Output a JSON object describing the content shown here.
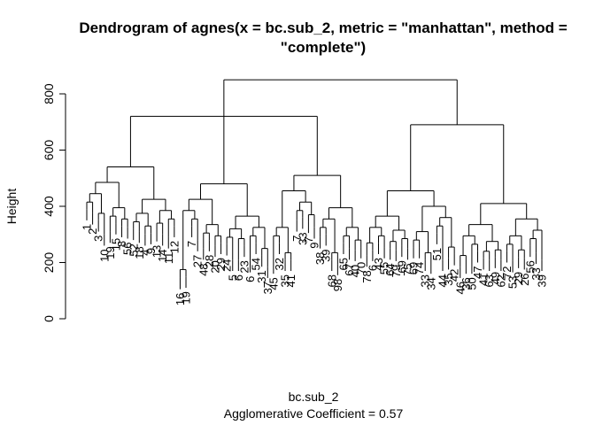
{
  "chart_data": {
    "type": "dendrogram",
    "title_line1": "Dendrogram of  agnes(x = bc.sub_2, metric = \"manhattan\", method =",
    "title_line2": "\"complete\")",
    "ylabel": "Height",
    "xlabel": "bc.sub_2",
    "subtitle": "Agglomerative Coefficient =  0.57",
    "yticks": [
      0,
      200,
      400,
      600,
      800
    ],
    "ylim": [
      0,
      860
    ],
    "leaf_order": [
      "1",
      "2",
      "3",
      "10",
      "19",
      "15",
      "8",
      "56",
      "52",
      "18",
      "4",
      "9",
      "13",
      "14",
      "11",
      "12",
      "16",
      "19",
      "7",
      "27",
      "48",
      "28",
      "20",
      "29",
      "24",
      "5",
      "6",
      "23",
      "6",
      "54",
      "31",
      "37",
      "45",
      "32",
      "35",
      "41",
      "7",
      "33",
      "7",
      "9",
      "38",
      "39",
      "68",
      "98",
      "65",
      "67",
      "40",
      "70",
      "78",
      "6",
      "43",
      "55",
      "64",
      "79",
      "69",
      "75",
      "69",
      "74",
      "33",
      "34",
      "51",
      "44",
      "35",
      "42",
      "46",
      "36",
      "50",
      "47",
      "41",
      "63",
      "49",
      "62",
      "72",
      "53",
      "29",
      "26",
      "56",
      "33",
      "39"
    ],
    "leaf_heights": [
      390,
      375,
      350,
      300,
      310,
      340,
      330,
      325,
      320,
      310,
      300,
      305,
      315,
      300,
      290,
      330,
      145,
      150,
      330,
      280,
      250,
      280,
      260,
      270,
      265,
      210,
      210,
      260,
      205,
      270,
      225,
      185,
      200,
      270,
      210,
      210,
      350,
      360,
      345,
      325,
      290,
      300,
      210,
      195,
      270,
      250,
      245,
      255,
      225,
      245,
      270,
      255,
      250,
      245,
      260,
      250,
      255,
      255,
      210,
      200,
      305,
      210,
      215,
      230,
      185,
      200,
      200,
      240,
      215,
      210,
      220,
      210,
      240,
      205,
      220,
      215,
      260,
      235,
      210
    ],
    "merge_heights": [
      850,
      720,
      690,
      670,
      645,
      630,
      590,
      555,
      545,
      500,
      450,
      410
    ]
  }
}
